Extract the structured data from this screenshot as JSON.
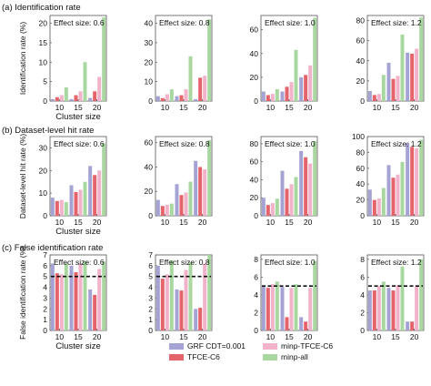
{
  "colors": {
    "GRF": "#a5a3d4",
    "TFCE": "#e5636a",
    "minpTFCE": "#f2b2c9",
    "minpAll": "#a8d8a0",
    "threshold": "#111111"
  },
  "legend": [
    {
      "key": "GRF",
      "label": "GRF CDT=0.001"
    },
    {
      "key": "TFCE",
      "label": "TFCE-C6"
    },
    {
      "key": "minpTFCE",
      "label": "minp-TFCE-C6"
    },
    {
      "key": "minpAll",
      "label": "minp-all"
    }
  ],
  "chart_data": [
    {
      "row_label": "(a)",
      "row_title": "Identification rate",
      "ylabel": "Identification rate (%)",
      "xlabel": "Cluster size",
      "annotation": "Effect size: 0.6",
      "type": "bar",
      "categories": [
        "10",
        "15",
        "20"
      ],
      "ylim": [
        0,
        22
      ],
      "yticks": [
        0,
        5,
        10,
        15,
        20
      ],
      "series": [
        {
          "key": "GRF",
          "values": [
            0.5,
            0.5,
            0.8
          ]
        },
        {
          "key": "TFCE",
          "values": [
            1.0,
            1.5,
            2.5
          ]
        },
        {
          "key": "minpTFCE",
          "values": [
            1.5,
            2.5,
            6.2
          ]
        },
        {
          "key": "minpAll",
          "values": [
            3.5,
            10.0,
            21.5
          ]
        }
      ]
    },
    {
      "annotation": "Effect size: 0.8",
      "type": "bar",
      "categories": [
        "10",
        "15",
        "20"
      ],
      "ylim": [
        0,
        44
      ],
      "yticks": [
        0,
        10,
        20,
        30,
        40
      ],
      "series": [
        {
          "key": "GRF",
          "values": [
            2.5,
            2.5,
            1.0
          ]
        },
        {
          "key": "TFCE",
          "values": [
            1.5,
            3.0,
            12.0
          ]
        },
        {
          "key": "minpTFCE",
          "values": [
            3.5,
            6.0,
            13.0
          ]
        },
        {
          "key": "minpAll",
          "values": [
            6.0,
            23.0,
            42.0
          ]
        }
      ]
    },
    {
      "annotation": "Effect size: 1.0",
      "type": "bar",
      "categories": [
        "10",
        "15",
        "20"
      ],
      "ylim": [
        0,
        72
      ],
      "yticks": [
        0,
        20,
        40,
        60
      ],
      "series": [
        {
          "key": "GRF",
          "values": [
            8.0,
            8.0,
            20.0
          ]
        },
        {
          "key": "TFCE",
          "values": [
            5.0,
            12.0,
            22.0
          ]
        },
        {
          "key": "minpTFCE",
          "values": [
            6.0,
            16.0,
            30.0
          ]
        },
        {
          "key": "minpAll",
          "values": [
            10.0,
            43.0,
            70.0
          ]
        }
      ]
    },
    {
      "annotation": "Effect size: 1.2",
      "type": "bar",
      "categories": [
        "10",
        "15",
        "20"
      ],
      "ylim": [
        0,
        85
      ],
      "yticks": [
        0,
        20,
        40,
        60,
        80
      ],
      "series": [
        {
          "key": "GRF",
          "values": [
            10.0,
            38.0,
            48.0
          ]
        },
        {
          "key": "TFCE",
          "values": [
            6.0,
            22.0,
            47.0
          ]
        },
        {
          "key": "minpTFCE",
          "values": [
            7.0,
            25.0,
            52.0
          ]
        },
        {
          "key": "minpAll",
          "values": [
            26.0,
            66.0,
            83.0
          ]
        }
      ]
    },
    {
      "row_label": "(b)",
      "row_title": "Dataset-level hit rate",
      "ylabel": "Dataset-level hit rate (%)",
      "xlabel": "Cluster size",
      "annotation": "Effect size: 0.6",
      "type": "bar",
      "categories": [
        "10",
        "15",
        "20"
      ],
      "ylim": [
        0,
        35
      ],
      "yticks": [
        0,
        10,
        20,
        30
      ],
      "series": [
        {
          "key": "GRF",
          "values": [
            8.0,
            13.5,
            22.0
          ]
        },
        {
          "key": "TFCE",
          "values": [
            6.5,
            10.5,
            18.0
          ]
        },
        {
          "key": "minpTFCE",
          "values": [
            7.0,
            11.5,
            20.0
          ]
        },
        {
          "key": "minpAll",
          "values": [
            6.0,
            15.0,
            32.0
          ]
        }
      ]
    },
    {
      "annotation": "Effect size: 0.8",
      "type": "bar",
      "categories": [
        "10",
        "15",
        "20"
      ],
      "ylim": [
        0,
        65
      ],
      "yticks": [
        0,
        20,
        40,
        60
      ],
      "series": [
        {
          "key": "GRF",
          "values": [
            13.0,
            26.0,
            45.0
          ]
        },
        {
          "key": "TFCE",
          "values": [
            8.0,
            17.0,
            40.0
          ]
        },
        {
          "key": "minpTFCE",
          "values": [
            9.0,
            19.0,
            38.0
          ]
        },
        {
          "key": "minpAll",
          "values": [
            10.0,
            28.0,
            62.0
          ]
        }
      ]
    },
    {
      "annotation": "Effect size: 1.0",
      "type": "bar",
      "categories": [
        "10",
        "15",
        "20"
      ],
      "ylim": [
        0,
        88
      ],
      "yticks": [
        0,
        20,
        40,
        60,
        80
      ],
      "series": [
        {
          "key": "GRF",
          "values": [
            20.0,
            50.0,
            72.0
          ]
        },
        {
          "key": "TFCE",
          "values": [
            12.0,
            30.0,
            65.0
          ]
        },
        {
          "key": "minpTFCE",
          "values": [
            14.0,
            35.0,
            58.0
          ]
        },
        {
          "key": "minpAll",
          "values": [
            19.0,
            43.0,
            83.0
          ]
        }
      ]
    },
    {
      "annotation": "Effect size: 1.2",
      "type": "bar",
      "categories": [
        "10",
        "15",
        "20"
      ],
      "ylim": [
        0,
        100
      ],
      "yticks": [
        0,
        20,
        40,
        60,
        80,
        100
      ],
      "series": [
        {
          "key": "GRF",
          "values": [
            33.0,
            64.0,
            92.0
          ]
        },
        {
          "key": "TFCE",
          "values": [
            20.0,
            48.0,
            87.0
          ]
        },
        {
          "key": "minpTFCE",
          "values": [
            22.0,
            52.0,
            85.0
          ]
        },
        {
          "key": "minpAll",
          "values": [
            35.0,
            68.0,
            96.0
          ]
        }
      ]
    },
    {
      "row_label": "(c)",
      "row_title": "False identification rate",
      "ylabel": "False identification rate (%)",
      "xlabel": "Cluster size",
      "annotation": "Effect size: 0.6",
      "type": "bar",
      "categories": [
        "10",
        "15",
        "20"
      ],
      "ylim": [
        0,
        7
      ],
      "yticks": [
        0,
        1,
        2,
        3,
        4,
        5,
        6,
        7
      ],
      "reference_line": 5,
      "series": [
        {
          "key": "GRF",
          "values": [
            6.2,
            6.0,
            3.8
          ]
        },
        {
          "key": "TFCE",
          "values": [
            5.3,
            5.4,
            3.3
          ]
        },
        {
          "key": "minpTFCE",
          "values": [
            5.2,
            6.2,
            5.7
          ]
        },
        {
          "key": "minpAll",
          "values": [
            6.2,
            6.4,
            6.4
          ]
        }
      ]
    },
    {
      "annotation": "Effect size: 0.8",
      "type": "bar",
      "categories": [
        "10",
        "15",
        "20"
      ],
      "ylim": [
        0,
        7
      ],
      "yticks": [
        0,
        1,
        2,
        3,
        4,
        5,
        6,
        7
      ],
      "reference_line": 5,
      "series": [
        {
          "key": "GRF",
          "values": [
            6.0,
            3.8,
            2.0
          ]
        },
        {
          "key": "TFCE",
          "values": [
            4.8,
            3.7,
            2.1
          ]
        },
        {
          "key": "minpTFCE",
          "values": [
            5.2,
            5.6,
            6.2
          ]
        },
        {
          "key": "minpAll",
          "values": [
            6.5,
            6.3,
            7.0
          ]
        }
      ]
    },
    {
      "annotation": "Effect size: 1.0",
      "type": "bar",
      "categories": [
        "10",
        "15",
        "20"
      ],
      "ylim": [
        0,
        8.5
      ],
      "yticks": [
        0,
        2,
        4,
        6,
        8
      ],
      "reference_line": 5,
      "series": [
        {
          "key": "GRF",
          "values": [
            5.0,
            4.9,
            1.5
          ]
        },
        {
          "key": "TFCE",
          "values": [
            4.8,
            1.5,
            1.0
          ]
        },
        {
          "key": "minpTFCE",
          "values": [
            5.2,
            4.8,
            4.8
          ]
        },
        {
          "key": "minpAll",
          "values": [
            5.5,
            5.2,
            7.8
          ]
        }
      ]
    },
    {
      "annotation": "Effect size: 1.2",
      "type": "bar",
      "categories": [
        "10",
        "15",
        "20"
      ],
      "ylim": [
        0,
        8.5
      ],
      "yticks": [
        0,
        2,
        4,
        6,
        8
      ],
      "reference_line": 5,
      "series": [
        {
          "key": "GRF",
          "values": [
            4.5,
            4.8,
            1.0
          ]
        },
        {
          "key": "TFCE",
          "values": [
            4.5,
            4.5,
            1.0
          ]
        },
        {
          "key": "minpTFCE",
          "values": [
            5.0,
            5.1,
            5.0
          ]
        },
        {
          "key": "minpAll",
          "values": [
            5.5,
            7.2,
            8.0
          ]
        }
      ]
    }
  ]
}
